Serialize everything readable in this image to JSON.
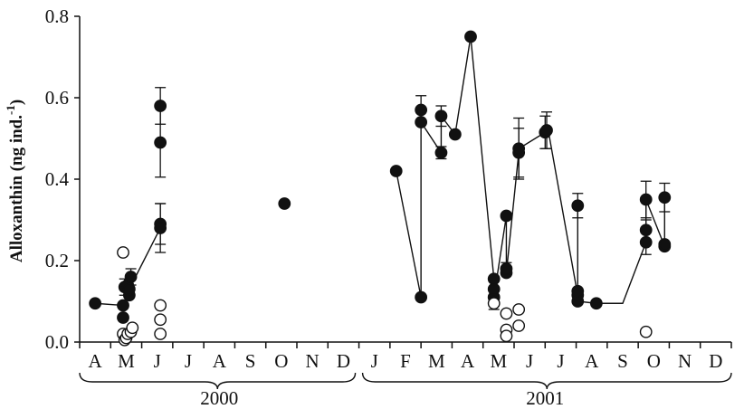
{
  "chart_data": {
    "type": "scatter",
    "ylabel": {
      "main": "Alloxanthin (ng ind.",
      "sup": "-1",
      "close": ")"
    },
    "ylim": [
      0,
      0.8
    ],
    "yticks": [
      "0.0",
      "0.2",
      "0.4",
      "0.6",
      "0.8"
    ],
    "xticks": [
      "A",
      "M",
      "J",
      "J",
      "A",
      "S",
      "O",
      "N",
      "D",
      "J",
      "F",
      "M",
      "A",
      "M",
      "J",
      "J",
      "A",
      "S",
      "O",
      "N",
      "D"
    ],
    "years": [
      "2000",
      "2001"
    ],
    "series": [
      {
        "marker": "filled",
        "color": "#111111",
        "line_segments": [
          [
            [
              0.5,
              0.095
            ],
            [
              1.4,
              0.09
            ]
          ],
          [
            [
              1.6,
              0.13
            ],
            [
              2.6,
              0.28
            ]
          ],
          [
            [
              10.2,
              0.42
            ],
            [
              11.0,
              0.11
            ],
            [
              11.0,
              0.57
            ]
          ],
          [
            [
              11.0,
              0.54
            ],
            [
              11.65,
              0.465
            ],
            [
              11.65,
              0.555
            ],
            [
              12.1,
              0.51
            ],
            [
              12.6,
              0.75
            ],
            [
              13.35,
              0.155
            ],
            [
              13.35,
              0.11
            ],
            [
              13.75,
              0.31
            ],
            [
              13.75,
              0.17
            ],
            [
              14.15,
              0.465
            ],
            [
              14.15,
              0.475
            ],
            [
              15.0,
              0.515
            ]
          ],
          [
            [
              15.1,
              0.52
            ],
            [
              16.05,
              0.115
            ],
            [
              16.05,
              0.1
            ],
            [
              16.65,
              0.095
            ],
            [
              17.5,
              0.095
            ]
          ],
          [
            [
              16.05,
              0.335
            ],
            [
              16.05,
              0.125
            ]
          ],
          [
            [
              16.65,
              0.095
            ],
            [
              17.5,
              0.095
            ],
            [
              18.25,
              0.245
            ],
            [
              18.25,
              0.35
            ],
            [
              18.85,
              0.235
            ],
            [
              18.85,
              0.355
            ]
          ]
        ],
        "points": [
          {
            "x": 0.5,
            "y": 0.095
          },
          {
            "x": 1.4,
            "y": 0.06
          },
          {
            "x": 1.4,
            "y": 0.09
          },
          {
            "x": 1.45,
            "y": 0.135,
            "err": 0.02
          },
          {
            "x": 1.55,
            "y": 0.14
          },
          {
            "x": 1.6,
            "y": 0.115
          },
          {
            "x": 1.6,
            "y": 0.13
          },
          {
            "x": 1.65,
            "y": 0.16,
            "err": 0.02
          },
          {
            "x": 2.6,
            "y": 0.29,
            "err": 0.05
          },
          {
            "x": 2.6,
            "y": 0.28,
            "err": 0.06
          },
          {
            "x": 2.6,
            "y": 0.49,
            "err": 0.085
          },
          {
            "x": 2.6,
            "y": 0.58,
            "err": 0.045
          },
          {
            "x": 6.6,
            "y": 0.34
          },
          {
            "x": 10.2,
            "y": 0.42
          },
          {
            "x": 11.0,
            "y": 0.11
          },
          {
            "x": 11.0,
            "y": 0.54
          },
          {
            "x": 11.0,
            "y": 0.57,
            "err": 0.035
          },
          {
            "x": 11.65,
            "y": 0.465,
            "err": 0.015
          },
          {
            "x": 11.65,
            "y": 0.555,
            "err": 0.025
          },
          {
            "x": 12.1,
            "y": 0.51
          },
          {
            "x": 12.6,
            "y": 0.75
          },
          {
            "x": 13.35,
            "y": 0.11
          },
          {
            "x": 13.35,
            "y": 0.13
          },
          {
            "x": 13.35,
            "y": 0.155
          },
          {
            "x": 13.75,
            "y": 0.17
          },
          {
            "x": 13.75,
            "y": 0.18,
            "err": 0.015
          },
          {
            "x": 13.75,
            "y": 0.31
          },
          {
            "x": 14.15,
            "y": 0.465,
            "err": 0.06
          },
          {
            "x": 14.15,
            "y": 0.475,
            "err": 0.075
          },
          {
            "x": 15.0,
            "y": 0.515,
            "err": 0.04
          },
          {
            "x": 15.05,
            "y": 0.52,
            "err": 0.045
          },
          {
            "x": 16.05,
            "y": 0.1
          },
          {
            "x": 16.05,
            "y": 0.115
          },
          {
            "x": 16.05,
            "y": 0.125
          },
          {
            "x": 16.05,
            "y": 0.335,
            "err": 0.03
          },
          {
            "x": 16.65,
            "y": 0.095
          },
          {
            "x": 18.25,
            "y": 0.245,
            "err": 0.03
          },
          {
            "x": 18.25,
            "y": 0.275,
            "err": 0.025
          },
          {
            "x": 18.25,
            "y": 0.35,
            "err": 0.045
          },
          {
            "x": 18.85,
            "y": 0.235
          },
          {
            "x": 18.85,
            "y": 0.24
          },
          {
            "x": 18.85,
            "y": 0.355,
            "err": 0.035
          }
        ]
      },
      {
        "marker": "open",
        "color": "#111111",
        "points": [
          {
            "x": 1.4,
            "y": 0.22
          },
          {
            "x": 1.4,
            "y": 0.02
          },
          {
            "x": 1.45,
            "y": 0.005
          },
          {
            "x": 1.5,
            "y": 0.01
          },
          {
            "x": 1.55,
            "y": 0.02
          },
          {
            "x": 1.65,
            "y": 0.025
          },
          {
            "x": 1.7,
            "y": 0.035
          },
          {
            "x": 2.6,
            "y": 0.09
          },
          {
            "x": 2.6,
            "y": 0.055
          },
          {
            "x": 2.6,
            "y": 0.02
          },
          {
            "x": 13.35,
            "y": 0.095,
            "err": 0.015
          },
          {
            "x": 13.75,
            "y": 0.07
          },
          {
            "x": 13.75,
            "y": 0.03
          },
          {
            "x": 13.75,
            "y": 0.015
          },
          {
            "x": 14.15,
            "y": 0.08
          },
          {
            "x": 14.15,
            "y": 0.04
          },
          {
            "x": 18.25,
            "y": 0.025
          }
        ]
      }
    ],
    "grid": false,
    "legend": "none"
  }
}
